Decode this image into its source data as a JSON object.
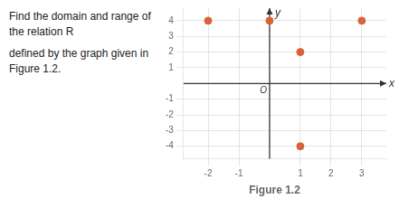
{
  "chart_data": {
    "type": "scatter",
    "title": "Figure 1.2",
    "subtitle": [
      "Find the domain and range of the relation R",
      "defined by the graph given in Figure 1.2."
    ],
    "x": [
      -2,
      0,
      3,
      1,
      1
    ],
    "values": [
      4,
      4,
      4,
      2,
      -4
    ],
    "color": "#D9623B",
    "xlabel": "x",
    "ylabel": "y",
    "xlim": [
      -2.8,
      3.8
    ],
    "ylim": [
      -4.8,
      4.8
    ],
    "xticks": [
      -2,
      -1,
      1,
      2,
      3
    ],
    "yticks": [
      -4,
      -3,
      -2,
      -1,
      1,
      2,
      3,
      4
    ],
    "grid": true,
    "annotations": [
      {
        "text": "O",
        "x": 0,
        "y": 0
      }
    ]
  }
}
